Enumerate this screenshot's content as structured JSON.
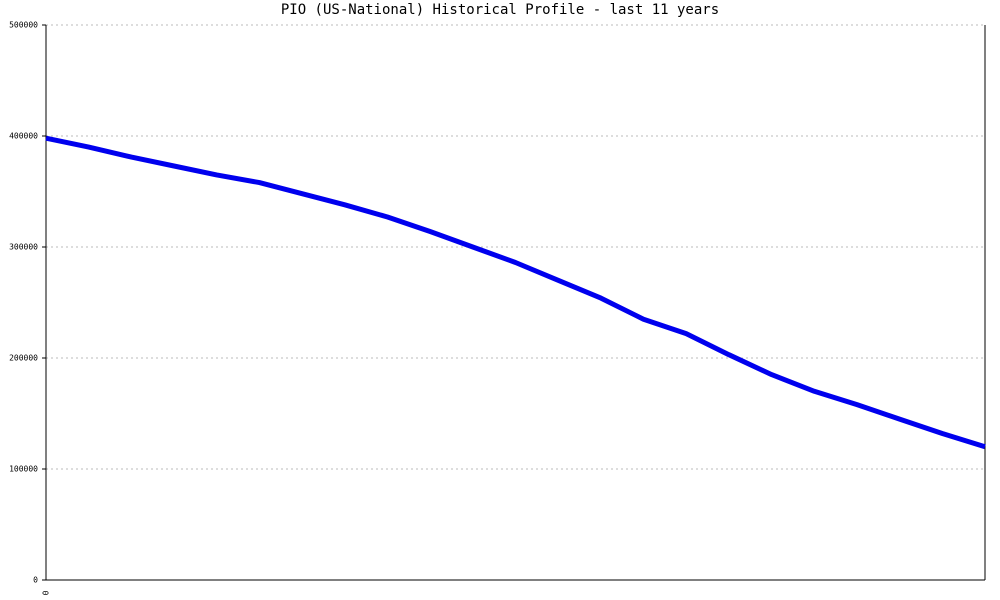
{
  "chart_data": {
    "type": "line",
    "title": "PIO (US-National) Historical Profile - last 11 years",
    "categories": [
      "0",
      null,
      null,
      null,
      null,
      null,
      null,
      null,
      null,
      null,
      null,
      null,
      null,
      null,
      null,
      null,
      null,
      null,
      null,
      null,
      null,
      null,
      null
    ],
    "values": [
      398000,
      390000,
      381000,
      373000,
      365000,
      358000,
      348000,
      338000,
      327000,
      314000,
      300000,
      286000,
      270000,
      254000,
      235000,
      222000,
      203000,
      185000,
      170000,
      158000,
      145000,
      132000,
      120000
    ],
    "color": "#0000ee",
    "ylim": [
      0,
      500000
    ],
    "yticks": [
      0,
      100000,
      200000,
      300000,
      400000,
      500000
    ],
    "grid": true
  }
}
